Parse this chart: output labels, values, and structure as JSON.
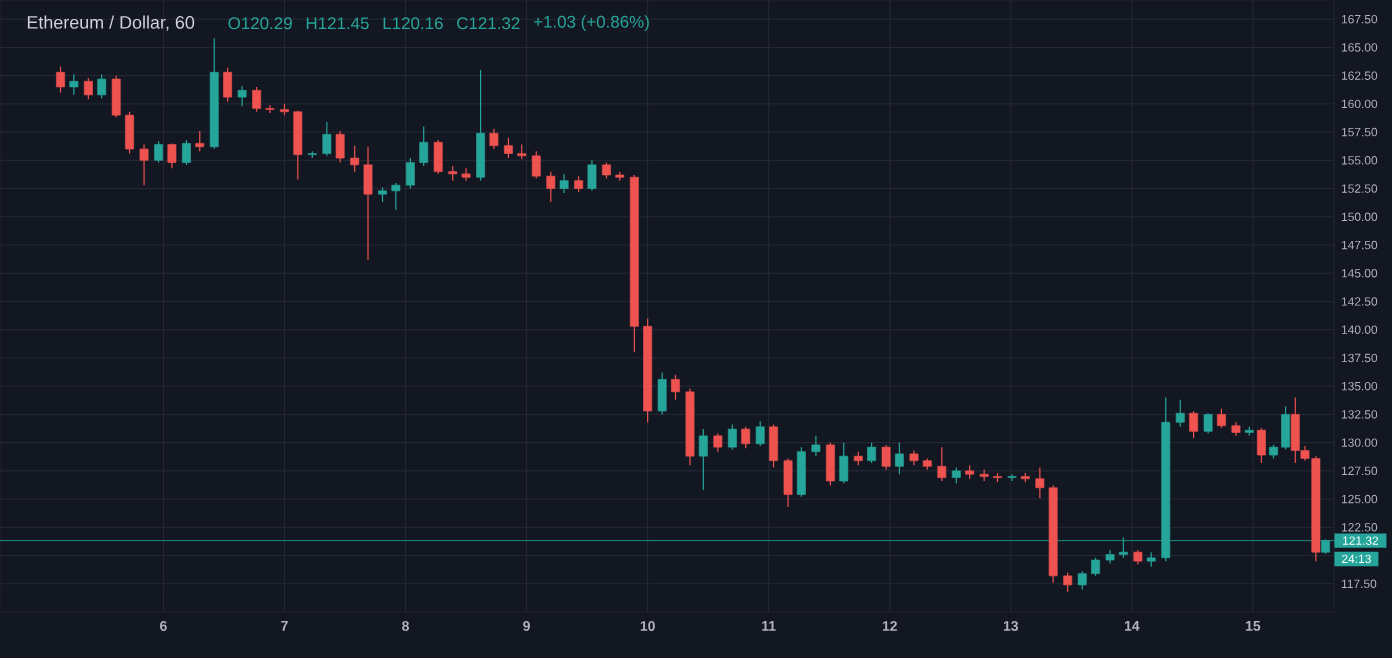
{
  "chart_data": {
    "type": "candlestick",
    "title": "Ethereum / Dollar, 60",
    "annotations": [
      "O120.29",
      "H121.45",
      "L120.16",
      "C121.32",
      "+1.03 (+0.86%)",
      "24:13"
    ],
    "x": [
      5.15,
      5.26,
      5.38,
      5.49,
      5.61,
      5.72,
      5.84,
      5.96,
      6.07,
      6.19,
      6.3,
      6.42,
      6.53,
      6.65,
      6.77,
      6.88,
      7.0,
      7.11,
      7.23,
      7.35,
      7.46,
      7.58,
      7.69,
      7.81,
      7.92,
      8.04,
      8.15,
      8.27,
      8.39,
      8.5,
      8.62,
      8.73,
      8.85,
      8.96,
      9.08,
      9.2,
      9.31,
      9.43,
      9.54,
      9.66,
      9.77,
      9.89,
      10.0,
      10.12,
      10.23,
      10.35,
      10.46,
      10.58,
      10.7,
      10.81,
      10.93,
      11.04,
      11.16,
      11.27,
      11.39,
      11.51,
      11.62,
      11.74,
      11.85,
      11.97,
      12.08,
      12.2,
      12.31,
      12.43,
      12.55,
      12.66,
      12.78,
      12.89,
      13.01,
      13.12,
      13.24,
      13.35,
      13.47,
      13.59,
      13.7,
      13.82,
      13.93,
      14.05,
      14.16,
      14.28,
      14.4,
      14.51,
      14.63,
      14.74,
      14.86,
      14.97,
      15.07,
      15.17,
      15.27,
      15.35,
      15.43,
      15.52,
      15.6
    ],
    "ohlc": [
      [
        162.8,
        163.3,
        161.0,
        161.5
      ],
      [
        161.5,
        162.6,
        160.8,
        162.0
      ],
      [
        162.0,
        162.3,
        160.4,
        160.8
      ],
      [
        160.8,
        162.6,
        160.5,
        162.2
      ],
      [
        162.2,
        162.5,
        158.8,
        159.0
      ],
      [
        159.0,
        159.3,
        155.6,
        156.0
      ],
      [
        156.0,
        156.4,
        152.8,
        155.0
      ],
      [
        155.0,
        156.7,
        154.8,
        156.4
      ],
      [
        156.4,
        156.5,
        154.3,
        154.8
      ],
      [
        154.8,
        156.8,
        154.6,
        156.5
      ],
      [
        156.5,
        157.6,
        155.8,
        156.2
      ],
      [
        156.2,
        165.8,
        156.0,
        162.8
      ],
      [
        162.8,
        163.2,
        160.2,
        160.6
      ],
      [
        160.6,
        161.6,
        159.8,
        161.2
      ],
      [
        161.2,
        161.5,
        159.3,
        159.6
      ],
      [
        159.6,
        159.9,
        159.2,
        159.5
      ],
      [
        159.5,
        160.0,
        159.0,
        159.3
      ],
      [
        159.3,
        159.4,
        153.3,
        155.5
      ],
      [
        155.5,
        155.8,
        155.2,
        155.6
      ],
      [
        155.6,
        158.4,
        155.4,
        157.3
      ],
      [
        157.3,
        157.6,
        154.8,
        155.2
      ],
      [
        155.2,
        156.3,
        154.0,
        154.6
      ],
      [
        154.6,
        156.2,
        146.2,
        152.0
      ],
      [
        152.0,
        152.6,
        151.3,
        152.3
      ],
      [
        152.3,
        153.0,
        150.6,
        152.8
      ],
      [
        152.8,
        155.2,
        152.5,
        154.8
      ],
      [
        154.8,
        158.0,
        154.5,
        156.6
      ],
      [
        156.6,
        156.8,
        153.8,
        154.0
      ],
      [
        154.0,
        154.5,
        153.2,
        153.8
      ],
      [
        153.8,
        154.3,
        153.2,
        153.5
      ],
      [
        153.5,
        163.0,
        153.2,
        157.4
      ],
      [
        157.4,
        157.8,
        156.0,
        156.3
      ],
      [
        156.3,
        157.0,
        155.2,
        155.6
      ],
      [
        155.6,
        156.4,
        155.1,
        155.4
      ],
      [
        155.4,
        155.8,
        153.4,
        153.6
      ],
      [
        153.6,
        154.0,
        151.3,
        152.5
      ],
      [
        152.5,
        153.8,
        152.1,
        153.2
      ],
      [
        153.2,
        153.6,
        152.2,
        152.5
      ],
      [
        152.5,
        155.0,
        152.3,
        154.6
      ],
      [
        154.6,
        154.8,
        153.4,
        153.7
      ],
      [
        153.7,
        154.0,
        153.2,
        153.5
      ],
      [
        153.5,
        153.7,
        138.0,
        140.3
      ],
      [
        140.3,
        141.0,
        131.8,
        132.8
      ],
      [
        132.8,
        136.2,
        132.5,
        135.6
      ],
      [
        135.6,
        136.0,
        133.8,
        134.5
      ],
      [
        134.5,
        134.8,
        128.0,
        128.8
      ],
      [
        128.8,
        131.2,
        125.8,
        130.6
      ],
      [
        130.6,
        130.8,
        129.2,
        129.6
      ],
      [
        129.6,
        131.6,
        129.4,
        131.2
      ],
      [
        131.2,
        131.4,
        129.5,
        129.9
      ],
      [
        129.9,
        131.9,
        129.7,
        131.4
      ],
      [
        131.4,
        131.6,
        127.8,
        128.4
      ],
      [
        128.4,
        128.6,
        124.3,
        125.4
      ],
      [
        125.4,
        129.6,
        125.2,
        129.2
      ],
      [
        129.2,
        130.6,
        128.8,
        129.8
      ],
      [
        129.8,
        130.0,
        126.2,
        126.6
      ],
      [
        126.6,
        130.0,
        126.4,
        128.8
      ],
      [
        128.8,
        129.2,
        128.0,
        128.4
      ],
      [
        128.4,
        130.0,
        128.2,
        129.6
      ],
      [
        129.6,
        129.8,
        127.6,
        127.9
      ],
      [
        127.9,
        130.0,
        127.2,
        129.0
      ],
      [
        129.0,
        129.3,
        128.0,
        128.4
      ],
      [
        128.4,
        128.6,
        127.6,
        127.9
      ],
      [
        127.9,
        129.6,
        126.6,
        126.9
      ],
      [
        126.9,
        127.8,
        126.4,
        127.5
      ],
      [
        127.5,
        128.0,
        126.8,
        127.2
      ],
      [
        127.2,
        127.6,
        126.6,
        127.0
      ],
      [
        127.0,
        127.3,
        126.5,
        126.9
      ],
      [
        126.9,
        127.2,
        126.6,
        127.0
      ],
      [
        127.0,
        127.3,
        126.5,
        126.8
      ],
      [
        126.8,
        127.8,
        125.1,
        126.0
      ],
      [
        126.0,
        126.2,
        117.6,
        118.2
      ],
      [
        118.2,
        118.5,
        116.8,
        117.4
      ],
      [
        117.4,
        118.6,
        117.0,
        118.4
      ],
      [
        118.4,
        119.8,
        118.2,
        119.6
      ],
      [
        119.6,
        120.5,
        119.3,
        120.1
      ],
      [
        120.1,
        121.6,
        119.8,
        120.3
      ],
      [
        120.3,
        120.5,
        119.2,
        119.5
      ],
      [
        119.5,
        120.3,
        119.0,
        119.8
      ],
      [
        119.8,
        134.0,
        119.5,
        131.8
      ],
      [
        131.8,
        133.8,
        131.4,
        132.6
      ],
      [
        132.6,
        132.8,
        130.4,
        131.0
      ],
      [
        131.0,
        132.6,
        130.8,
        132.5
      ],
      [
        132.5,
        133.0,
        131.3,
        131.5
      ],
      [
        131.5,
        131.8,
        130.6,
        130.9
      ],
      [
        130.9,
        131.4,
        130.6,
        131.1
      ],
      [
        131.1,
        131.3,
        128.2,
        128.9
      ],
      [
        128.9,
        129.8,
        128.6,
        129.6
      ],
      [
        129.6,
        133.2,
        129.4,
        132.5
      ],
      [
        132.5,
        134.0,
        128.2,
        129.3
      ],
      [
        129.3,
        129.7,
        128.4,
        128.6
      ],
      [
        128.6,
        128.8,
        119.5,
        120.3
      ],
      [
        120.29,
        121.45,
        120.16,
        121.32
      ]
    ],
    "xlim": [
      4.65,
      15.67
    ],
    "ylim": [
      115,
      169.2
    ],
    "xticks": [
      6,
      7,
      8,
      9,
      10,
      11,
      12,
      13,
      14,
      15
    ],
    "yticks": [
      {
        "value": 117.5,
        "label": "117.50"
      },
      {
        "value": 120,
        "label": null
      },
      {
        "value": 122.5,
        "label": "122.50"
      },
      {
        "value": 125,
        "label": "125.00"
      },
      {
        "value": 127.5,
        "label": "127.50"
      },
      {
        "value": 130,
        "label": "130.00"
      },
      {
        "value": 132.5,
        "label": "132.50"
      },
      {
        "value": 135,
        "label": "135.00"
      },
      {
        "value": 137.5,
        "label": "137.50"
      },
      {
        "value": 140,
        "label": "140.00"
      },
      {
        "value": 142.5,
        "label": "142.50"
      },
      {
        "value": 145,
        "label": "145.00"
      },
      {
        "value": 147.5,
        "label": "147.50"
      },
      {
        "value": 150,
        "label": "150.00"
      },
      {
        "value": 152.5,
        "label": "152.50"
      },
      {
        "value": 155,
        "label": "155.00"
      },
      {
        "value": 157.5,
        "label": "157.50"
      },
      {
        "value": 160,
        "label": "160.00"
      },
      {
        "value": 162.5,
        "label": "162.50"
      },
      {
        "value": 165,
        "label": "165.00"
      },
      {
        "value": 167.5,
        "label": "167.50"
      }
    ],
    "grid": true,
    "ref_lines": [
      {
        "axis": "y",
        "value": 121.32,
        "label": "121.32",
        "color": "#26a69a"
      }
    ]
  }
}
